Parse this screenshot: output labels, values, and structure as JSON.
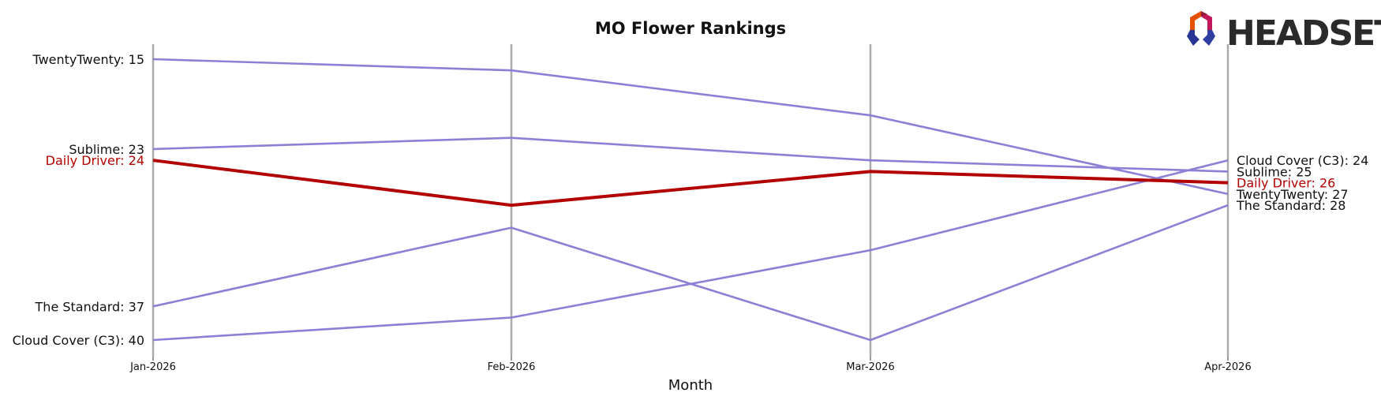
{
  "chart_data": {
    "type": "line",
    "title": "MO Flower Rankings",
    "xlabel": "Month",
    "ylabel": "",
    "categories": [
      "Jan-2026",
      "Feb-2026",
      "Mar-2026",
      "Apr-2026"
    ],
    "ylim": [
      41,
      14
    ],
    "y_inverted": true,
    "highlight_series": "Daily Driver",
    "colors": {
      "highlight": "#b30000",
      "other": "#8b80d6",
      "axis_line": "#aaaaaa",
      "text": "#111111"
    },
    "series": [
      {
        "name": "TwentyTwenty",
        "values": [
          15,
          16,
          20,
          27
        ]
      },
      {
        "name": "Sublime",
        "values": [
          23,
          22,
          24,
          25
        ]
      },
      {
        "name": "Daily Driver",
        "values": [
          24,
          28,
          25,
          26
        ]
      },
      {
        "name": "The Standard",
        "values": [
          37,
          30,
          40,
          28
        ]
      },
      {
        "name": "Cloud Cover (C3)",
        "values": [
          40,
          38,
          32,
          24
        ]
      }
    ],
    "left_labels": [
      {
        "series": "TwentyTwenty",
        "text": "TwentyTwenty: 15"
      },
      {
        "series": "Sublime",
        "text": "Sublime: 23"
      },
      {
        "series": "Daily Driver",
        "text": "Daily Driver: 24"
      },
      {
        "series": "The Standard",
        "text": "The Standard: 37"
      },
      {
        "series": "Cloud Cover (C3)",
        "text": "Cloud Cover (C3): 40"
      }
    ],
    "right_labels": [
      {
        "series": "Cloud Cover (C3)",
        "text": "Cloud Cover (C3): 24"
      },
      {
        "series": "Sublime",
        "text": "Sublime: 25"
      },
      {
        "series": "Daily Driver",
        "text": "Daily Driver: 26"
      },
      {
        "series": "TwentyTwenty",
        "text": "TwentyTwenty: 27"
      },
      {
        "series": "The Standard",
        "text": "The Standard: 28"
      }
    ]
  },
  "logo": {
    "text": "HEADSET",
    "icon": "headset-logo-icon"
  }
}
